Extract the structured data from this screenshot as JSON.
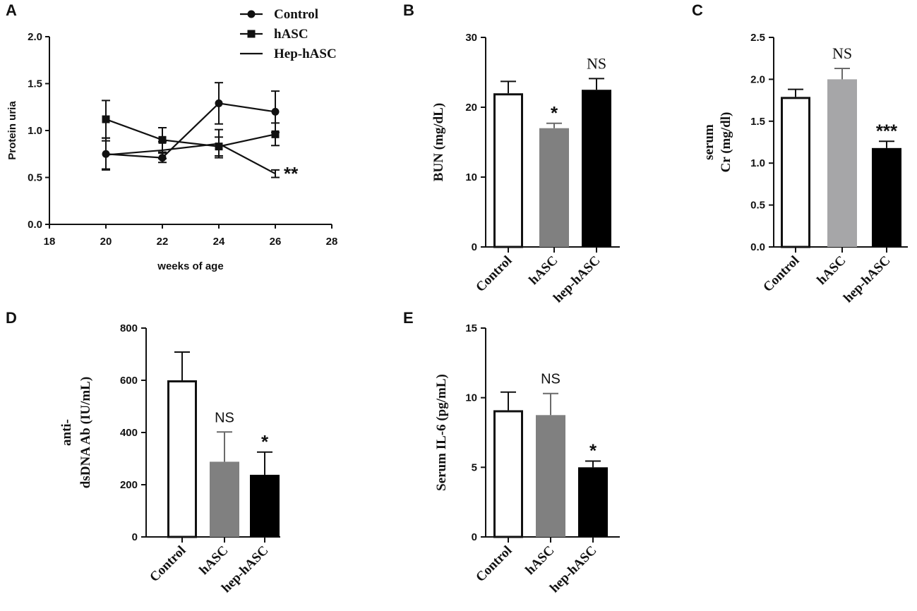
{
  "chart_data": [
    {
      "panel": "A",
      "type": "line",
      "xlabel": "weeks of age",
      "ylabel": "Protein uria",
      "xlim": [
        18,
        28
      ],
      "ylim": [
        0.0,
        2.0
      ],
      "xticks": [
        "18",
        "20",
        "22",
        "24",
        "26",
        "28"
      ],
      "yticks": [
        "0.0",
        "0.5",
        "1.0",
        "1.5",
        "2.0"
      ],
      "legend_position": "top-right",
      "annotation": "**",
      "series": [
        {
          "name": "Control",
          "marker": "circle",
          "x": [
            20,
            22,
            24,
            26
          ],
          "y": [
            0.75,
            0.71,
            1.29,
            1.2
          ],
          "err": [
            0.17,
            0.05,
            0.22,
            0.22
          ]
        },
        {
          "name": "hASC",
          "marker": "square",
          "x": [
            20,
            22,
            24,
            26
          ],
          "y": [
            1.12,
            0.9,
            0.83,
            0.96
          ],
          "err": [
            0.2,
            0.13,
            0.1,
            0.12
          ]
        },
        {
          "name": "Hep-hASC",
          "marker": "none",
          "x": [
            20,
            22,
            24,
            26
          ],
          "y": [
            0.74,
            0.79,
            0.86,
            0.54
          ],
          "err": [
            0.15,
            0.09,
            0.15,
            0.04
          ]
        }
      ]
    },
    {
      "panel": "B",
      "type": "bar",
      "ylabel": "BUN (mg/dL)",
      "ylim": [
        0,
        30
      ],
      "yticks": [
        "0",
        "10",
        "20",
        "30"
      ],
      "categories": [
        "Control",
        "hASC",
        "hep-hASC"
      ],
      "values": [
        22.0,
        17.0,
        22.5
      ],
      "errors": [
        1.7,
        0.7,
        1.6
      ],
      "significance": [
        "",
        "*",
        "NS"
      ]
    },
    {
      "panel": "C",
      "type": "bar",
      "ylabel_lines": [
        "serum",
        "Cr (mg/dl)"
      ],
      "ylim": [
        0.0,
        2.5
      ],
      "yticks": [
        "0.0",
        "0.5",
        "1.0",
        "1.5",
        "2.0",
        "2.5"
      ],
      "categories": [
        "Control",
        "hASC",
        "hep-hASC"
      ],
      "values": [
        1.79,
        2.0,
        1.18
      ],
      "errors": [
        0.09,
        0.13,
        0.08
      ],
      "significance": [
        "",
        "NS",
        "***"
      ]
    },
    {
      "panel": "D",
      "type": "bar",
      "ylabel_lines": [
        "anti-",
        "dsDNA Ab (IU/mL)"
      ],
      "ylim": [
        0,
        800
      ],
      "yticks": [
        "0",
        "200",
        "400",
        "600",
        "800"
      ],
      "categories": [
        "Control",
        "hASC",
        "hep-hASC"
      ],
      "values": [
        600,
        288,
        238
      ],
      "errors": [
        108,
        114,
        87
      ],
      "significance": [
        "",
        "NS",
        "*"
      ]
    },
    {
      "panel": "E",
      "type": "bar",
      "ylabel": "Serum IL-6   (pg/mL)",
      "ylim": [
        0,
        15
      ],
      "yticks": [
        "0",
        "5",
        "10",
        "15"
      ],
      "categories": [
        "Control",
        "hASC",
        "hep-hASC"
      ],
      "values": [
        9.1,
        8.75,
        5.0
      ],
      "errors": [
        1.3,
        1.55,
        0.45
      ],
      "significance": [
        "",
        "NS",
        "*"
      ]
    }
  ],
  "colors": {
    "control_bar": "#ffffff",
    "hasc_bar": "#808080",
    "hasc_bar_light": "#a6a6a8",
    "hep_bar": "#000000",
    "ink": "#111111"
  }
}
